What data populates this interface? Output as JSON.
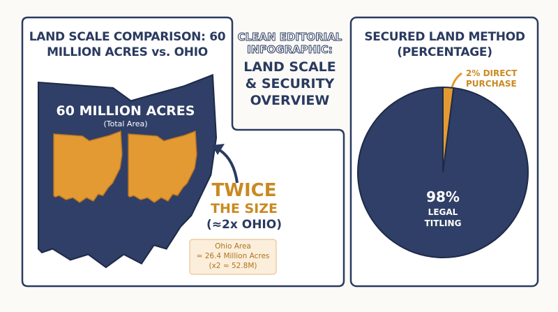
{
  "header": {
    "kicker": "CLEAN EDITORIAL INFOGRAPHIC:",
    "title": "LAND SCALE & SECURITY OVERVIEW"
  },
  "comparison": {
    "title": "LAND SCALE COMPARISON: 60 MILLION ACRES vs. OHIO",
    "map_label": "60 MILLION ACRES",
    "map_sublabel": "(Total Area)",
    "callout_line1": "TWICE",
    "callout_line2": "THE SIZE",
    "callout_line3": "(≈2x OHIO)",
    "note": [
      "Ohio Area",
      "≈ 26.4 Million Acres",
      "(x2 ≈ 52.8M)"
    ]
  },
  "chart_data": {
    "type": "pie",
    "title": "SECURED LAND METHOD (PERCENTAGE)",
    "categories": [
      "LEGAL TITLING",
      "DIRECT PURCHASE"
    ],
    "values": [
      98,
      2
    ],
    "value_labels": [
      "98%",
      "2%"
    ],
    "colors": [
      "#2f3f67",
      "#e39a33"
    ]
  }
}
